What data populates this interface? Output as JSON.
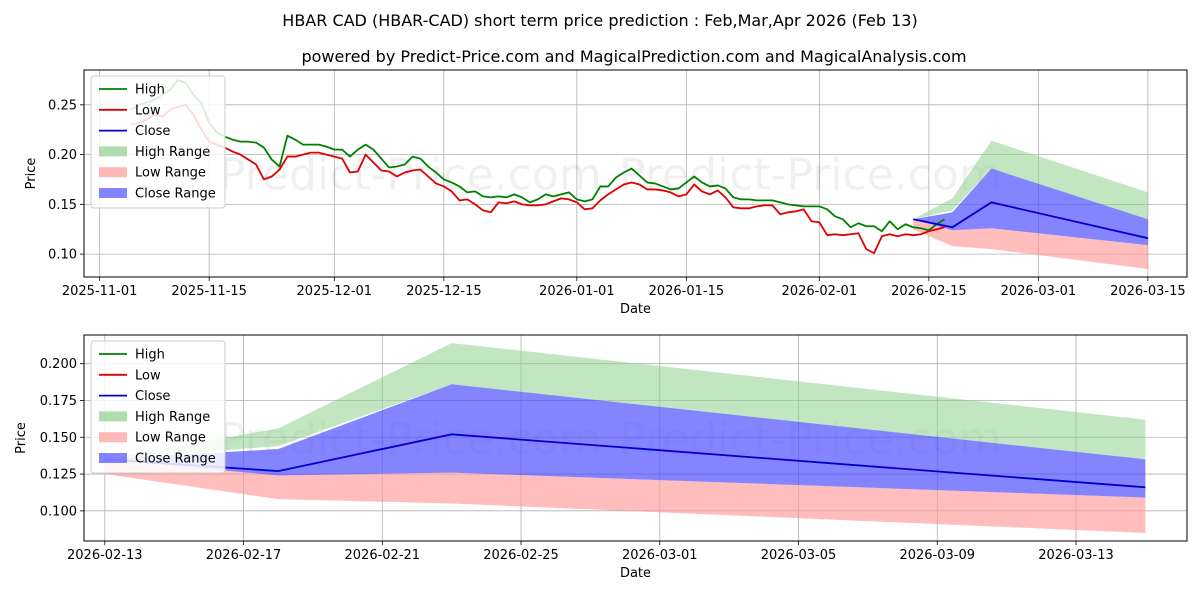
{
  "title": "HBAR CAD (HBAR-CAD) short term price prediction : Feb,Mar,Apr 2026 (Feb 13)",
  "subtitle": "powered by Predict-Price.com and MagicalPrediction.com and MagicalAnalysis.com",
  "watermark": "Predict-Price.com",
  "colors": {
    "high": "#008000",
    "low": "#e00000",
    "close": "#0000cc",
    "high_range": "#8fcf8f",
    "low_range": "#ff9a9a",
    "close_range": "#5050ff"
  },
  "legend": {
    "high": "High",
    "low": "Low",
    "close": "Close",
    "high_range": "High Range",
    "low_range": "Low Range",
    "close_range": "Close Range"
  },
  "chart_data": [
    {
      "type": "line",
      "panel": "history-and-forecast",
      "xlabel": "Date",
      "ylabel": "Price",
      "xlim": [
        "2025-10-30",
        "2026-03-20"
      ],
      "ylim": [
        0.077,
        0.285
      ],
      "x_ticks": [
        "2025-11-01",
        "2025-11-15",
        "2025-12-01",
        "2025-12-15",
        "2026-01-01",
        "2026-01-15",
        "2026-02-01",
        "2026-02-15",
        "2026-03-01",
        "2026-03-15"
      ],
      "y_ticks": [
        0.1,
        0.15,
        0.2,
        0.25
      ],
      "y_tick_labels": [
        "0.10",
        "0.15",
        "0.20",
        "0.25"
      ],
      "history_start": "2025-11-05",
      "history": {
        "high": [
          0.245,
          0.25,
          0.252,
          0.255,
          0.26,
          0.265,
          0.275,
          0.272,
          0.26,
          0.252,
          0.232,
          0.222,
          0.218,
          0.215,
          0.213,
          0.213,
          0.212,
          0.207,
          0.195,
          0.188,
          0.219,
          0.215,
          0.21,
          0.21,
          0.21,
          0.208,
          0.205,
          0.205,
          0.198,
          0.205,
          0.21,
          0.205,
          0.196,
          0.187,
          0.188,
          0.19,
          0.198,
          0.196,
          0.188,
          0.182,
          0.175,
          0.172,
          0.168,
          0.162,
          0.163,
          0.158,
          0.157,
          0.158,
          0.157,
          0.16,
          0.157,
          0.152,
          0.155,
          0.16,
          0.158,
          0.16,
          0.162,
          0.155,
          0.153,
          0.155,
          0.168,
          0.168,
          0.177,
          0.182,
          0.186,
          0.179,
          0.172,
          0.171,
          0.168,
          0.165,
          0.166,
          0.172,
          0.178,
          0.172,
          0.168,
          0.169,
          0.166,
          0.157,
          0.155,
          0.155,
          0.154,
          0.154,
          0.154,
          0.152,
          0.15,
          0.149,
          0.148,
          0.148,
          0.148,
          0.145,
          0.138,
          0.135,
          0.127,
          0.131,
          0.128,
          0.128,
          0.123,
          0.133,
          0.125,
          0.13,
          0.127,
          0.126,
          0.124,
          0.13,
          0.135
        ],
        "low": [
          0.23,
          0.232,
          0.235,
          0.24,
          0.238,
          0.245,
          0.248,
          0.25,
          0.24,
          0.225,
          0.213,
          0.21,
          0.207,
          0.203,
          0.2,
          0.195,
          0.19,
          0.175,
          0.178,
          0.185,
          0.198,
          0.198,
          0.2,
          0.202,
          0.202,
          0.2,
          0.198,
          0.196,
          0.182,
          0.183,
          0.2,
          0.192,
          0.184,
          0.183,
          0.178,
          0.182,
          0.184,
          0.185,
          0.178,
          0.171,
          0.168,
          0.163,
          0.154,
          0.155,
          0.15,
          0.144,
          0.142,
          0.152,
          0.151,
          0.153,
          0.15,
          0.149,
          0.149,
          0.15,
          0.153,
          0.156,
          0.155,
          0.152,
          0.145,
          0.146,
          0.154,
          0.16,
          0.165,
          0.17,
          0.172,
          0.17,
          0.165,
          0.165,
          0.164,
          0.162,
          0.158,
          0.16,
          0.17,
          0.163,
          0.16,
          0.164,
          0.157,
          0.147,
          0.146,
          0.146,
          0.148,
          0.149,
          0.149,
          0.14,
          0.142,
          0.143,
          0.145,
          0.133,
          0.132,
          0.119,
          0.12,
          0.119,
          0.12,
          0.121,
          0.105,
          0.101,
          0.118,
          0.12,
          0.118,
          0.12,
          0.119,
          0.12,
          0.123,
          0.125,
          0.127
        ]
      },
      "forecast": {
        "dates": [
          "2026-02-13",
          "2026-02-18",
          "2026-02-23",
          "2026-03-15"
        ],
        "close": [
          0.135,
          0.127,
          0.152,
          0.116
        ],
        "high_range": {
          "upper": [
            0.135,
            0.156,
            0.214,
            0.162
          ],
          "lower": [
            0.135,
            0.144,
            0.186,
            0.135
          ]
        },
        "close_range": {
          "upper": [
            0.135,
            0.142,
            0.186,
            0.135
          ],
          "lower": [
            0.135,
            0.124,
            0.126,
            0.109
          ]
        },
        "low_range": {
          "upper": [
            0.135,
            0.124,
            0.126,
            0.109
          ],
          "lower": [
            0.125,
            0.108,
            0.105,
            0.085
          ]
        }
      }
    },
    {
      "type": "line",
      "panel": "forecast-zoom",
      "xlabel": "Date",
      "ylabel": "Price",
      "xlim": [
        "2026-02-12.4",
        "2026-03-16.2"
      ],
      "ylim": [
        0.0795,
        0.2195
      ],
      "x_ticks": [
        "2026-02-13",
        "2026-02-17",
        "2026-02-21",
        "2026-02-25",
        "2026-03-01",
        "2026-03-05",
        "2026-03-09",
        "2026-03-13"
      ],
      "y_ticks": [
        0.1,
        0.125,
        0.15,
        0.175,
        0.2
      ],
      "y_tick_labels": [
        "0.100",
        "0.125",
        "0.150",
        "0.175",
        "0.200"
      ]
    }
  ]
}
